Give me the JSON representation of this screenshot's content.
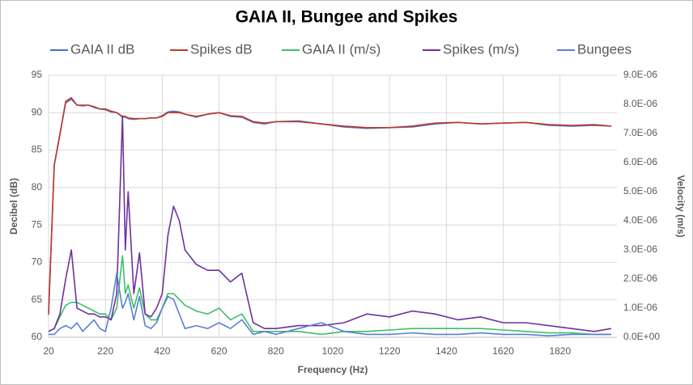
{
  "chart_data": {
    "type": "line",
    "title": "GAIA II, Bungee and Spikes",
    "x_label": "Frequency (Hz)",
    "y_label": "Decibel (dB)",
    "y2_label": "Velocity (m/s)",
    "x": [
      20,
      40,
      60,
      80,
      100,
      120,
      140,
      160,
      180,
      200,
      220,
      240,
      260,
      280,
      290,
      300,
      320,
      340,
      360,
      380,
      400,
      420,
      440,
      460,
      480,
      500,
      540,
      580,
      620,
      660,
      700,
      740,
      780,
      820,
      900,
      980,
      1060,
      1140,
      1220,
      1300,
      1380,
      1460,
      1540,
      1620,
      1700,
      1780,
      1860,
      1940,
      2000
    ],
    "xlim": [
      20,
      2020
    ],
    "xticks": [
      20,
      220,
      420,
      620,
      820,
      1020,
      1220,
      1420,
      1620,
      1820
    ],
    "ylim": [
      60,
      95
    ],
    "yticks": [
      60,
      65,
      70,
      75,
      80,
      85,
      90,
      95
    ],
    "y2lim": [
      0,
      9e-06
    ],
    "y2ticks": [
      {
        "value": 0,
        "label": "0.0E+00"
      },
      {
        "value": 1e-06,
        "label": "1.0E-06"
      },
      {
        "value": 2e-06,
        "label": "2.0E-06"
      },
      {
        "value": 3e-06,
        "label": "3.0E-06"
      },
      {
        "value": 4e-06,
        "label": "4.0E-06"
      },
      {
        "value": 5e-06,
        "label": "5.0E-06"
      },
      {
        "value": 6e-06,
        "label": "6.0E-06"
      },
      {
        "value": 7e-06,
        "label": "7.0E-06"
      },
      {
        "value": 8e-06,
        "label": "8.0E-06"
      },
      {
        "value": 9e-06,
        "label": "9.0E-06"
      }
    ],
    "grid": true,
    "series": [
      {
        "name": "GAIA II dB",
        "color": "#4472c4",
        "values": [
          63.5,
          83,
          87.2,
          91.3,
          91.8,
          91,
          90.9,
          91,
          90.7,
          90.5,
          90.4,
          90.1,
          90,
          89.4,
          89.4,
          89.2,
          89.1,
          89.2,
          89.2,
          89.3,
          89.3,
          89.6,
          90.1,
          90.2,
          90.1,
          89.8,
          89.4,
          89.8,
          90,
          89.5,
          89.4,
          88.7,
          88.5,
          88.8,
          88.9,
          88.5,
          88.1,
          87.9,
          88,
          88.1,
          88.5,
          88.7,
          88.5,
          88.6,
          88.7,
          88.3,
          88.2,
          88.3,
          88.2
        ]
      },
      {
        "name": "Spikes dB",
        "color": "#c0392b",
        "values": [
          63,
          83,
          87,
          91.5,
          92,
          91,
          91,
          91,
          90.8,
          90.5,
          90.5,
          90.2,
          90,
          89.5,
          89.5,
          89.3,
          89.2,
          89.2,
          89.2,
          89.3,
          89.3,
          89.5,
          90,
          90,
          90,
          89.8,
          89.5,
          89.8,
          90,
          89.6,
          89.5,
          88.8,
          88.6,
          88.8,
          88.8,
          88.5,
          88.2,
          88,
          88,
          88.2,
          88.6,
          88.7,
          88.5,
          88.6,
          88.7,
          88.4,
          88.3,
          88.4,
          88.2
        ]
      },
      {
        "name": "GAIA II (m/s)",
        "color": "#3cbf6a",
        "axis": "y2",
        "values": [
          2e-07,
          3e-07,
          7e-07,
          1.1e-06,
          1.2e-06,
          1.2e-06,
          1.1e-06,
          1e-06,
          9e-07,
          8e-07,
          8e-07,
          6e-07,
          1e-06,
          2.8e-06,
          1.5e-06,
          1.8e-06,
          1e-06,
          1.7e-06,
          8e-07,
          6e-07,
          6e-07,
          1e-06,
          1.5e-06,
          1.5e-06,
          1.3e-06,
          1.1e-06,
          9e-07,
          8e-07,
          1e-06,
          6e-07,
          8e-07,
          2e-07,
          2e-07,
          2e-07,
          2e-07,
          1e-07,
          2e-07,
          2e-07,
          2.5e-07,
          3e-07,
          3e-07,
          3e-07,
          3e-07,
          2.5e-07,
          2e-07,
          1.5e-07,
          1.5e-07,
          1e-07,
          1e-07
        ]
      },
      {
        "name": "Spikes (m/s)",
        "color": "#7030a0",
        "axis": "y2",
        "values": [
          2e-07,
          3e-07,
          8e-07,
          2e-06,
          3e-06,
          1e-06,
          9e-07,
          8e-07,
          8e-07,
          7e-07,
          7e-07,
          6e-07,
          1.5e-06,
          7.6e-06,
          3e-06,
          5e-06,
          1.5e-06,
          2.9e-06,
          8e-07,
          7e-07,
          1e-06,
          1.5e-06,
          3.5e-06,
          4.5e-06,
          4e-06,
          3e-06,
          2.5e-06,
          2.3e-06,
          2.3e-06,
          1.9e-06,
          2.2e-06,
          5e-07,
          3e-07,
          3e-07,
          4e-07,
          4e-07,
          5e-07,
          8e-07,
          7e-07,
          9e-07,
          8e-07,
          6e-07,
          7e-07,
          5e-07,
          5e-07,
          4e-07,
          3e-07,
          2e-07,
          3e-07
        ]
      },
      {
        "name": "Bungees",
        "color": "#5b7fd4",
        "axis": "y2",
        "values": [
          1e-07,
          1e-07,
          3e-07,
          4e-07,
          3e-07,
          5e-07,
          2e-07,
          4e-07,
          6e-07,
          3e-07,
          2e-07,
          1e-06,
          2.2e-06,
          1e-06,
          1.2e-06,
          1.5e-06,
          6e-07,
          1.4e-06,
          4e-07,
          3e-07,
          5e-07,
          1e-06,
          1.4e-06,
          1.3e-06,
          8e-07,
          3e-07,
          4e-07,
          3e-07,
          5e-07,
          3e-07,
          6e-07,
          1e-07,
          2e-07,
          1e-07,
          3e-07,
          5e-07,
          2e-07,
          1e-07,
          1e-07,
          1.5e-07,
          1e-07,
          1e-07,
          1.5e-07,
          1e-07,
          1e-07,
          5e-08,
          1e-07,
          1e-07,
          1e-07
        ]
      }
    ]
  }
}
